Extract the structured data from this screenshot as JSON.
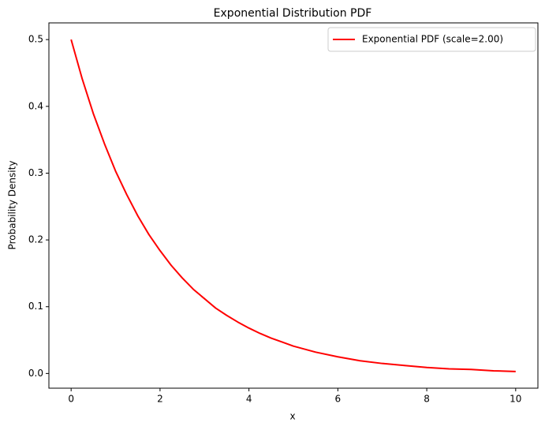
{
  "chart_data": {
    "type": "line",
    "title": "Exponential Distribution PDF",
    "xlabel": "x",
    "ylabel": "Probability Density",
    "x": [
      0,
      0.25,
      0.5,
      0.75,
      1,
      1.25,
      1.5,
      1.75,
      2,
      2.25,
      2.5,
      2.75,
      3,
      3.25,
      3.5,
      3.75,
      4,
      4.25,
      4.5,
      4.75,
      5,
      5.5,
      6,
      6.5,
      7,
      7.5,
      8,
      8.5,
      9,
      9.5,
      10
    ],
    "series": [
      {
        "name": "Exponential PDF (scale=2.00)",
        "color": "#ff0000",
        "values": [
          0.5,
          0.441,
          0.389,
          0.344,
          0.303,
          0.268,
          0.236,
          0.208,
          0.184,
          0.162,
          0.143,
          0.126,
          0.112,
          0.098,
          0.087,
          0.077,
          0.068,
          0.06,
          0.053,
          0.047,
          0.041,
          0.032,
          0.025,
          0.019,
          0.015,
          0.012,
          0.009,
          0.007,
          0.006,
          0.004,
          0.003
        ]
      }
    ],
    "xlim": [
      -0.5,
      10.5
    ],
    "xticks": [
      0,
      2,
      4,
      6,
      8,
      10
    ],
    "ylim": [
      -0.022,
      0.525
    ],
    "yticks": [
      {
        "value": 0,
        "label": "0.0"
      },
      0.1,
      0.2,
      0.3,
      0.4,
      0.5
    ],
    "grid": false,
    "legend": "upper right"
  }
}
